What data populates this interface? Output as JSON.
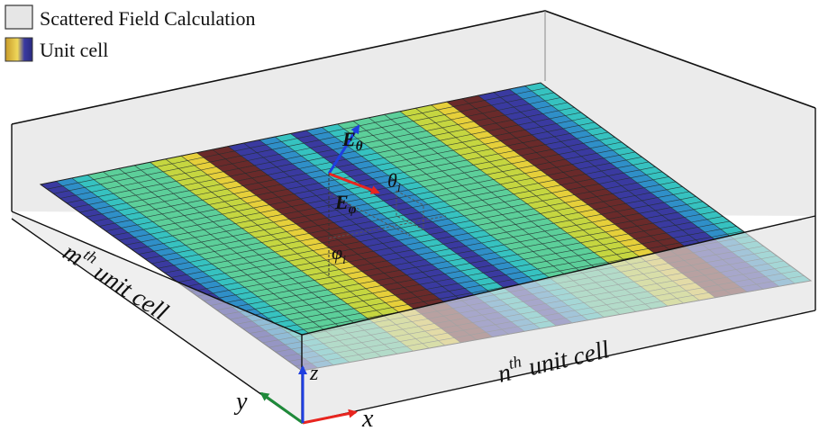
{
  "legend": {
    "items": [
      {
        "label": "Scattered Field Calculation",
        "swatch": "box-gray"
      },
      {
        "label": "Unit cell",
        "swatch": "colormap"
      }
    ]
  },
  "labels": {
    "m_base": "m",
    "m_sup": "th",
    "m_rest": " unit cell",
    "n_base": "n",
    "n_sup": "th",
    "n_rest": " unit cell",
    "e_theta_base": "E",
    "e_theta_sub": "θ",
    "e_phi_base": "E",
    "e_phi_sub": "φ",
    "theta_base": "θ",
    "theta_sub": "i",
    "phi_base": "φ",
    "phi_sub": "i",
    "axis_x": "x",
    "axis_y": "y",
    "axis_z": "z"
  },
  "colors": {
    "box_face": "#e6e6e6",
    "box_edge": "#111111",
    "mesh_line": "#1e2a2a",
    "arrow_red": "#e8251f",
    "arrow_blue": "#1f3fe0",
    "arrow_green": "#1f8a3a",
    "stripe_colormap": [
      "#3a3aa0",
      "#2f8fc8",
      "#36c2c0",
      "#5ccf9a",
      "#c5d640",
      "#e6cf3a",
      "#6a2a2a"
    ]
  }
}
